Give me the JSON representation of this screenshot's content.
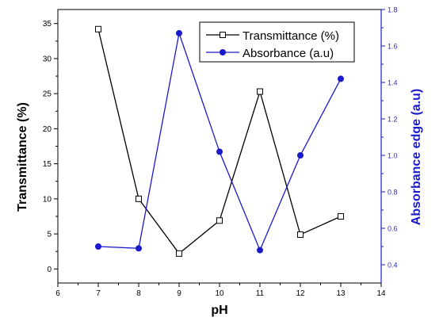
{
  "chart_data": {
    "type": "line",
    "x": [
      7,
      8,
      9,
      10,
      11,
      12,
      13
    ],
    "xlabel": "pH",
    "xlim": [
      6,
      14
    ],
    "xticks": [
      6,
      7,
      8,
      9,
      10,
      11,
      12,
      13,
      14
    ],
    "y_left": {
      "label": "Transmittance (%)",
      "lim": [
        -2,
        37
      ],
      "ticks": [
        0,
        5,
        10,
        15,
        20,
        25,
        30,
        35
      ]
    },
    "y_right": {
      "label": "Absorbance edge (a.u)",
      "lim": [
        0.3,
        1.8
      ],
      "ticks": [
        "0.4",
        "0.6",
        "0.8",
        "1.0",
        "1.2",
        "1.4",
        "1.6",
        "1.8"
      ]
    },
    "series": [
      {
        "name": "Transmittance (%)",
        "axis": "left",
        "marker": "open-square",
        "color": "#000000",
        "values": [
          34.2,
          10.0,
          2.2,
          6.9,
          25.3,
          4.9,
          7.5
        ]
      },
      {
        "name": "Absorbance (a.u)",
        "axis": "right",
        "marker": "filled-circle",
        "color": "#1a1acc",
        "values": [
          0.5,
          0.49,
          1.67,
          1.02,
          0.48,
          1.0,
          1.42
        ]
      }
    ],
    "legend_position": "top-right",
    "colors": {
      "frame": "#000000",
      "right_axis": "#1a1acc",
      "right_ticks": "#2e2eb8"
    }
  }
}
